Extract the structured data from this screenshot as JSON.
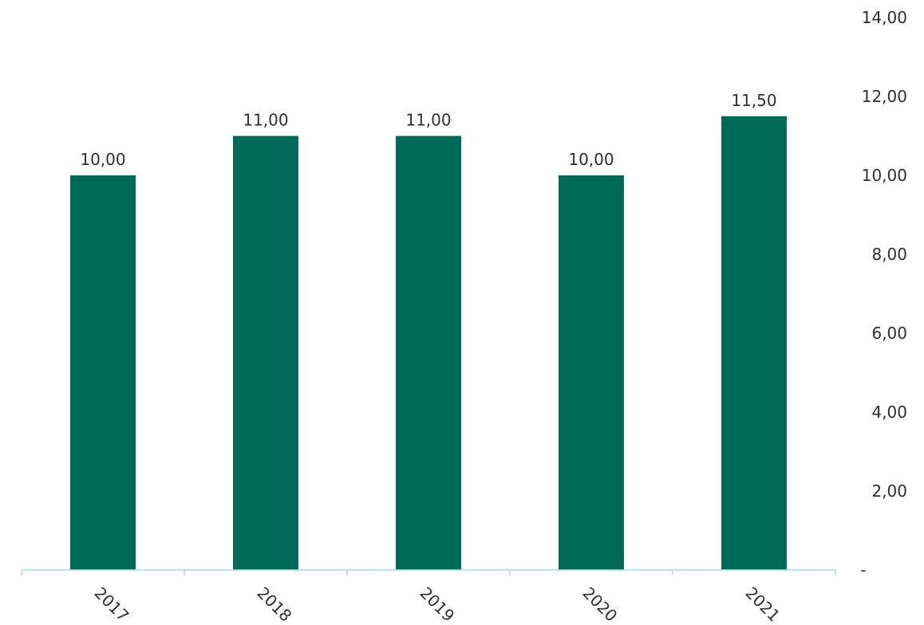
{
  "chart_data": {
    "type": "bar",
    "categories": [
      "2017",
      "2018",
      "2019",
      "2020",
      "2021"
    ],
    "values": [
      10.0,
      11.0,
      11.0,
      10.0,
      11.5
    ],
    "data_labels": [
      "10,00",
      "11,00",
      "11,00",
      "10,00",
      "11,50"
    ],
    "ylim": [
      0,
      14
    ],
    "y_ticks": [
      0,
      2,
      4,
      6,
      8,
      10,
      12,
      14
    ],
    "y_tick_labels": [
      "-",
      "2,00",
      "4,00",
      "6,00",
      "8,00",
      "10,00",
      "12,00",
      "14,00"
    ],
    "y_axis_side": "right",
    "grid": false,
    "legend": "none",
    "colors": {
      "bar": "#006a58",
      "axis": "#a9dbe6",
      "text": "#2f2f2f"
    }
  }
}
